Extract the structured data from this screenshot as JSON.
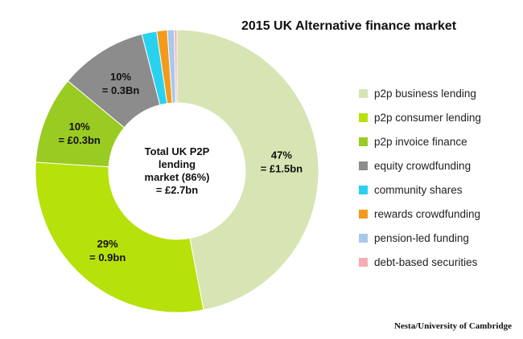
{
  "chart_data": {
    "type": "pie",
    "title": "2015 UK Alternative finance market",
    "legend_position": "right",
    "categories": [
      "p2p business lending",
      "p2p consumer lending",
      "p2p invoice finance",
      "equity crowdfunding",
      "community shares",
      "rewards crowdfunding",
      "pension-led funding",
      "debt-based securities"
    ],
    "values": [
      47,
      29,
      10,
      10,
      1.7,
      1.2,
      0.8,
      0.3
    ],
    "colors": [
      "#d6e5b3",
      "#b6e10a",
      "#9acb22",
      "#8c8c8c",
      "#2ad1ef",
      "#f39a1b",
      "#a8c8ec",
      "#f5aeb2"
    ],
    "slice_labels": [
      [
        "47%",
        "= £1.5bn"
      ],
      [
        "29%",
        "= 0.9bn"
      ],
      [
        "10%",
        "= £0.3bn"
      ],
      [
        "10%",
        "= 0.3Bn"
      ],
      null,
      null,
      null,
      null
    ],
    "center_label": [
      "Total UK P2P",
      "lending",
      "market (86%)",
      "= £2.7bn"
    ]
  },
  "source_note": "Nesta/University of Cambridge"
}
